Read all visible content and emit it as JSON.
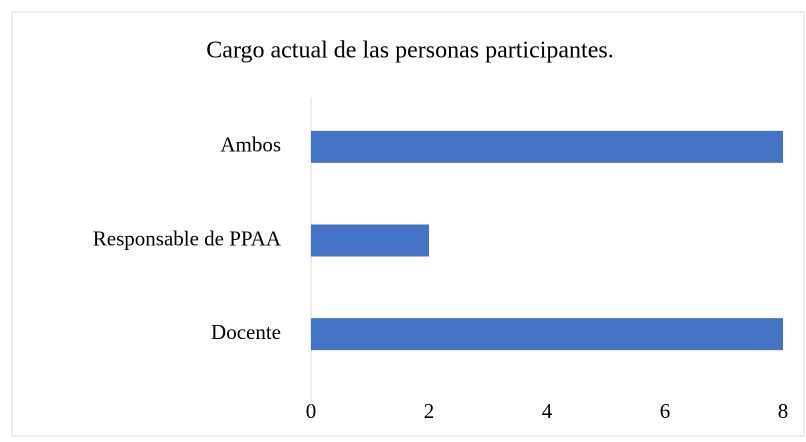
{
  "chart_data": {
    "type": "bar",
    "orientation": "horizontal",
    "title": "Cargo actual de las personas participantes.",
    "categories": [
      "Docente",
      "Responsable de PPAA",
      "Ambos"
    ],
    "values": [
      8,
      2,
      8
    ],
    "color": "#4472c4",
    "xlim": [
      0,
      8
    ],
    "xticks": [
      0,
      2,
      4,
      6,
      8
    ],
    "grid": false
  }
}
